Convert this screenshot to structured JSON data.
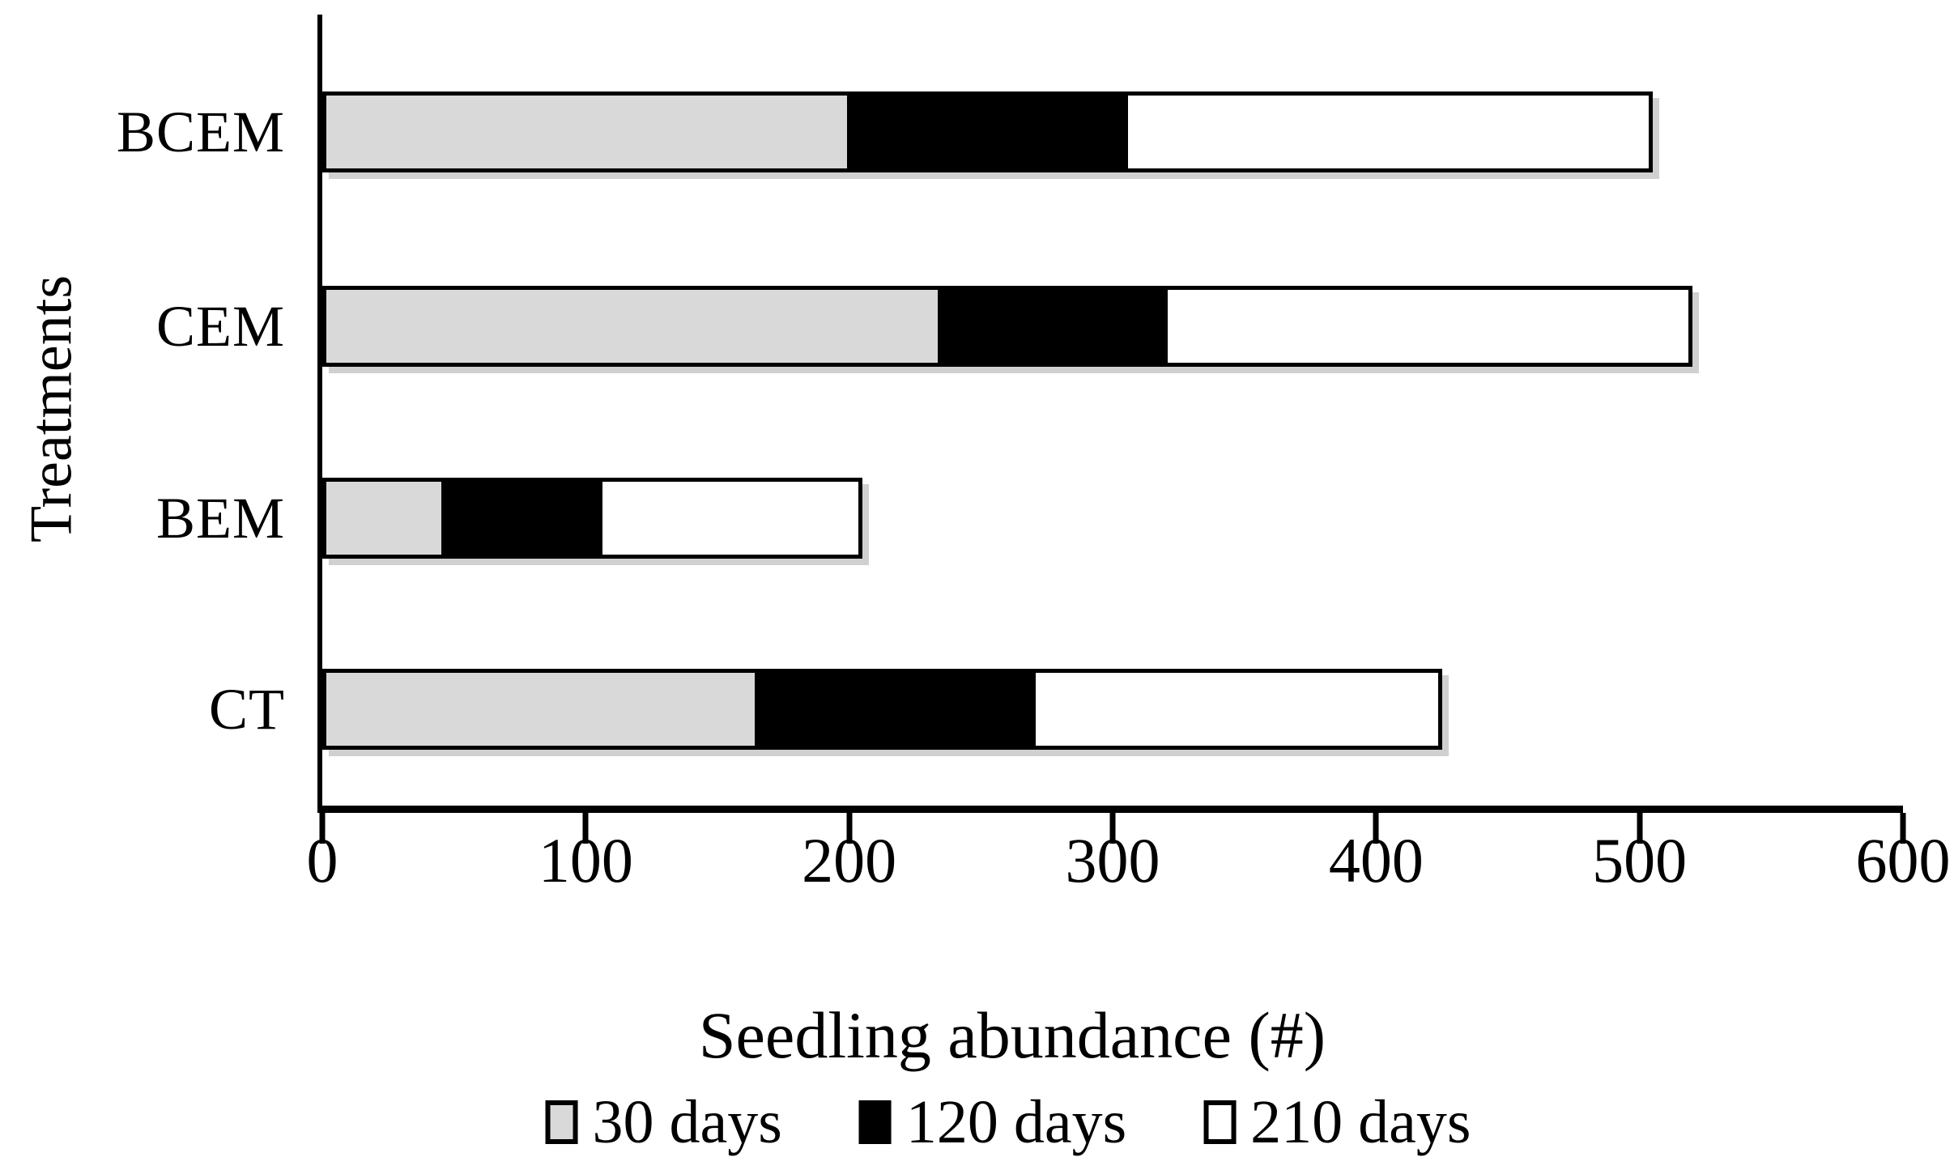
{
  "chart_data": {
    "type": "bar",
    "orientation": "horizontal",
    "stacked": true,
    "title": "",
    "xlabel": "Seedling abundance (#)",
    "ylabel": "Treatments",
    "xlim": [
      0,
      600
    ],
    "xticks": [
      "0",
      "100",
      "200",
      "300",
      "400",
      "500",
      "600"
    ],
    "grid": false,
    "legend_position": "bottom",
    "categories": [
      "BCEM",
      "CEM",
      "BEM",
      "CT"
    ],
    "series": [
      {
        "name": "30 days",
        "color": "#d9d9d9",
        "values": [
          200,
          235,
          45,
          165
        ]
      },
      {
        "name": "120 days",
        "color": "#000000",
        "values": [
          105,
          85,
          60,
          105
        ]
      },
      {
        "name": "210 days",
        "color": "#ffffff",
        "values": [
          200,
          200,
          100,
          155
        ]
      }
    ],
    "totals": [
      505,
      520,
      205,
      425
    ]
  }
}
